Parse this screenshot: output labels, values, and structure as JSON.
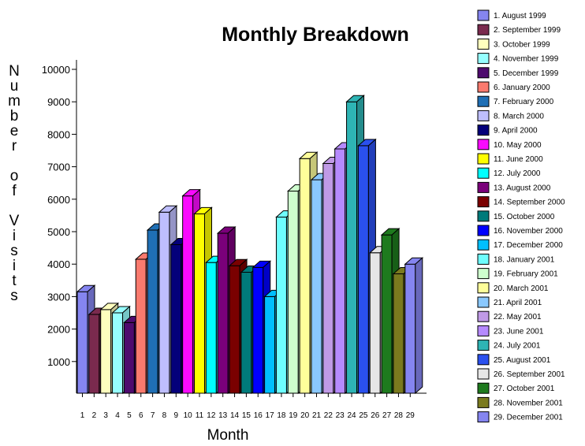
{
  "chart_data": {
    "type": "bar",
    "title": "Monthly Breakdown",
    "xlabel": "Month",
    "ylabel": "Number of Visits",
    "ylim": [
      0,
      10000
    ],
    "yticks": [
      1000,
      2000,
      3000,
      4000,
      5000,
      6000,
      7000,
      8000,
      9000,
      10000
    ],
    "style": "3d",
    "grid": false,
    "legend_position": "right",
    "categories": [
      "1",
      "2",
      "3",
      "4",
      "5",
      "6",
      "7",
      "8",
      "9",
      "10",
      "11",
      "12",
      "13",
      "14",
      "15",
      "16",
      "17",
      "18",
      "19",
      "20",
      "21",
      "22",
      "23",
      "24",
      "25",
      "26",
      "27",
      "28",
      "29"
    ],
    "legend": [
      "1. August 1999",
      "2. September 1999",
      "3. October 1999",
      "4. November 1999",
      "5. December 1999",
      "6. January 2000",
      "7. February 2000",
      "8. March 2000",
      "9. April 2000",
      "10. May 2000",
      "11. June 2000",
      "12. July 2000",
      "13. August 2000",
      "14. September 2000",
      "15. October 2000",
      "16. November 2000",
      "17. December 2000",
      "18. January 2001",
      "19. February 2001",
      "20. March 2001",
      "21. April 2001",
      "22. May 2001",
      "23. June 2001",
      "24. July 2001",
      "25. August 2001",
      "26. September 2001",
      "27. October 2001",
      "28. November 2001",
      "29. December 2001"
    ],
    "values": [
      3150,
      2450,
      2600,
      2500,
      2200,
      4150,
      5050,
      5600,
      4600,
      6100,
      5550,
      4050,
      4950,
      3950,
      3750,
      3900,
      3000,
      5450,
      6250,
      7250,
      6600,
      7100,
      7550,
      9000,
      7650,
      4350,
      4900,
      3700,
      4000
    ],
    "colors": [
      "#8585f0",
      "#7a2a4e",
      "#fefebe",
      "#96fefe",
      "#4e0a6e",
      "#fa7a6e",
      "#1f6fb5",
      "#bebefe",
      "#04007a",
      "#fa0afe",
      "#fefe00",
      "#00fefe",
      "#7a007a",
      "#7a0000",
      "#007a7a",
      "#0000fe",
      "#00bffe",
      "#6efefe",
      "#cefece",
      "#fefe9a",
      "#8ac8fe",
      "#c09ae6",
      "#b68afe",
      "#2eb4b4",
      "#2a50ee",
      "#e6e6e6",
      "#1e7a1e",
      "#7a7a1e",
      "#8585f0"
    ]
  }
}
